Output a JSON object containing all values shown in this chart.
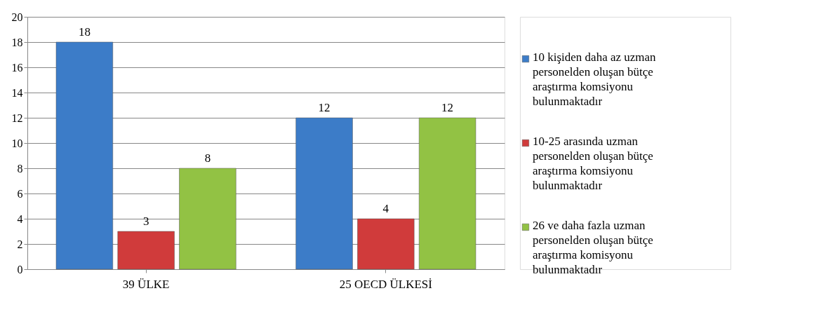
{
  "chart_data": {
    "type": "bar",
    "categories": [
      "39 ÜLKE",
      "25 OECD ÜLKESİ"
    ],
    "series": [
      {
        "name": "10 kişiden daha az uzman personelden oluşan bütçe araştırma komsiyonu bulunmaktadır",
        "color": "#3c7cc8",
        "values": [
          18,
          12
        ]
      },
      {
        "name": "10-25 arasında uzman personelden oluşan bütçe araştırma komsiyonu bulunmaktadır",
        "color": "#d03b3b",
        "values": [
          3,
          4
        ]
      },
      {
        "name": "26 ve daha fazla uzman personelden oluşan bütçe araştırma komisyonu bulunmaktadır",
        "color": "#92c244",
        "values": [
          8,
          12
        ]
      }
    ],
    "ylim": [
      0,
      20
    ],
    "yticks": [
      0,
      2,
      4,
      6,
      8,
      10,
      12,
      14,
      16,
      18,
      20
    ],
    "grid": "y",
    "data_labels": true,
    "legend": "right"
  }
}
